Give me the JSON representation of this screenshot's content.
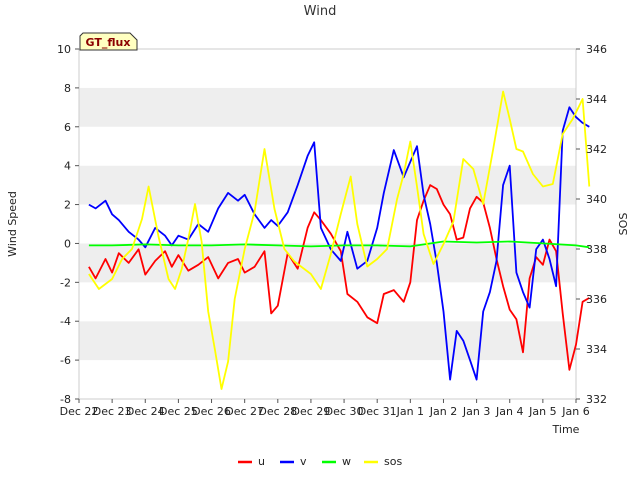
{
  "chart_data": {
    "type": "line",
    "title": "Wind",
    "site_label": "GT_flux",
    "xlabel": "Time",
    "ylabel": "Wind Speed",
    "ylabel_right": "SOS",
    "x_ticks": [
      "Dec 22",
      "Dec 23",
      "Dec 24",
      "Dec 25",
      "Dec 26",
      "Dec 27",
      "Dec 28",
      "Dec 29",
      "Dec 30",
      "Dec 31",
      "Jan 1",
      "Jan 2",
      "Jan 3",
      "Jan 4",
      "Jan 5",
      "Jan 6"
    ],
    "x_range_days": [
      0,
      15
    ],
    "y_left": {
      "range": [
        -8,
        10
      ],
      "ticks": [
        "-8",
        "-6",
        "-4",
        "-2",
        "0",
        "2",
        "4",
        "6",
        "8",
        "10"
      ]
    },
    "y_right": {
      "range": [
        332,
        346
      ],
      "ticks": [
        "332",
        "334",
        "336",
        "338",
        "340",
        "342",
        "344",
        "346"
      ]
    },
    "grid": "horizontal bands",
    "legend_position": "bottom-center",
    "series": [
      {
        "name": "u",
        "axis": "left",
        "color": "#ff0000",
        "x": [
          0.3,
          0.5,
          0.8,
          1.0,
          1.2,
          1.5,
          1.8,
          2.0,
          2.3,
          2.6,
          2.8,
          3.0,
          3.3,
          3.6,
          3.9,
          4.2,
          4.5,
          4.8,
          5.0,
          5.3,
          5.6,
          5.8,
          6.0,
          6.3,
          6.6,
          6.9,
          7.1,
          7.3,
          7.6,
          7.9,
          8.1,
          8.4,
          8.7,
          9.0,
          9.2,
          9.5,
          9.8,
          10.0,
          10.2,
          10.4,
          10.6,
          10.8,
          11.0,
          11.2,
          11.4,
          11.6,
          11.8,
          12.0,
          12.2,
          12.4,
          12.6,
          12.8,
          13.0,
          13.2,
          13.4,
          13.6,
          13.8,
          14.0,
          14.2,
          14.4,
          14.6,
          14.8,
          15.0,
          15.2,
          15.4
        ],
        "values": [
          -1.2,
          -1.8,
          -0.8,
          -1.5,
          -0.5,
          -1.0,
          -0.3,
          -1.6,
          -0.9,
          -0.4,
          -1.2,
          -0.6,
          -1.4,
          -1.1,
          -0.7,
          -1.8,
          -1.0,
          -0.8,
          -1.5,
          -1.2,
          -0.4,
          -3.6,
          -3.2,
          -0.5,
          -1.3,
          0.8,
          1.6,
          1.2,
          0.5,
          -0.4,
          -2.6,
          -3.0,
          -3.8,
          -4.1,
          -2.6,
          -2.4,
          -3.0,
          -2.0,
          1.2,
          2.2,
          3.0,
          2.8,
          2.0,
          1.5,
          0.2,
          0.3,
          1.8,
          2.4,
          2.1,
          0.8,
          -0.8,
          -2.2,
          -3.4,
          -3.9,
          -5.6,
          -1.8,
          -0.7,
          -1.1,
          0.2,
          -0.4,
          -3.6,
          -6.5,
          -5.2,
          -3.0,
          -2.8
        ]
      },
      {
        "name": "v",
        "axis": "left",
        "color": "#0000ff",
        "x": [
          0.3,
          0.5,
          0.8,
          1.0,
          1.2,
          1.5,
          1.8,
          2.0,
          2.3,
          2.6,
          2.8,
          3.0,
          3.3,
          3.6,
          3.9,
          4.2,
          4.5,
          4.8,
          5.0,
          5.3,
          5.6,
          5.8,
          6.0,
          6.3,
          6.6,
          6.9,
          7.1,
          7.3,
          7.6,
          7.9,
          8.1,
          8.4,
          8.7,
          9.0,
          9.2,
          9.5,
          9.8,
          10.0,
          10.2,
          10.4,
          10.6,
          10.8,
          11.0,
          11.2,
          11.4,
          11.6,
          11.8,
          12.0,
          12.2,
          12.4,
          12.6,
          12.8,
          13.0,
          13.2,
          13.4,
          13.6,
          13.8,
          14.0,
          14.2,
          14.4,
          14.6,
          14.8,
          15.0,
          15.2,
          15.4
        ],
        "values": [
          2.0,
          1.8,
          2.2,
          1.5,
          1.2,
          0.6,
          0.2,
          -0.2,
          0.8,
          0.4,
          -0.1,
          0.4,
          0.2,
          1.0,
          0.6,
          1.8,
          2.6,
          2.2,
          2.5,
          1.5,
          0.8,
          1.2,
          0.9,
          1.6,
          3.0,
          4.5,
          5.2,
          0.8,
          -0.3,
          -0.9,
          0.6,
          -1.3,
          -0.9,
          0.8,
          2.6,
          4.8,
          3.4,
          4.2,
          5.0,
          2.5,
          1.0,
          -1.0,
          -3.5,
          -7.0,
          -4.5,
          -5.0,
          -6.0,
          -7.0,
          -3.5,
          -2.5,
          -0.9,
          3.0,
          4.0,
          -1.5,
          -2.5,
          -3.3,
          -0.3,
          0.2,
          -0.8,
          -2.2,
          5.8,
          7.0,
          6.5,
          6.2,
          6.0
        ]
      },
      {
        "name": "w",
        "axis": "left",
        "color": "#00ff00",
        "x": [
          0.3,
          1.0,
          2.0,
          3.0,
          4.0,
          5.0,
          6.0,
          7.0,
          8.0,
          9.0,
          10.0,
          11.0,
          12.0,
          13.0,
          14.0,
          15.0,
          15.4
        ],
        "values": [
          -0.1,
          -0.1,
          -0.05,
          -0.1,
          -0.1,
          -0.05,
          -0.1,
          -0.15,
          -0.1,
          -0.1,
          -0.15,
          0.1,
          0.05,
          0.1,
          0.0,
          -0.1,
          -0.2
        ]
      },
      {
        "name": "sos",
        "axis": "right",
        "color": "#ffff00",
        "x": [
          0.3,
          0.6,
          1.0,
          1.3,
          1.6,
          1.9,
          2.1,
          2.4,
          2.7,
          2.9,
          3.1,
          3.3,
          3.5,
          3.7,
          3.9,
          4.1,
          4.3,
          4.5,
          4.7,
          5.0,
          5.3,
          5.6,
          5.9,
          6.2,
          6.5,
          6.8,
          7.0,
          7.3,
          7.6,
          7.9,
          8.2,
          8.4,
          8.7,
          9.0,
          9.3,
          9.6,
          9.8,
          10.0,
          10.2,
          10.4,
          10.7,
          11.0,
          11.3,
          11.6,
          11.9,
          12.2,
          12.5,
          12.8,
          13.0,
          13.2,
          13.4,
          13.7,
          14.0,
          14.3,
          14.6,
          14.9,
          15.2,
          15.4
        ],
        "values": [
          337.0,
          336.4,
          336.8,
          337.6,
          338.0,
          339.2,
          340.5,
          338.5,
          336.8,
          336.4,
          337.2,
          338.4,
          339.8,
          338.3,
          335.5,
          334.0,
          332.4,
          333.5,
          336.0,
          338.0,
          339.5,
          342.0,
          339.6,
          338.0,
          337.5,
          337.2,
          337.0,
          336.4,
          337.8,
          339.4,
          340.9,
          339.0,
          337.3,
          337.6,
          338.0,
          340.0,
          341.0,
          342.3,
          340.5,
          338.6,
          337.4,
          338.2,
          339.1,
          341.6,
          341.2,
          339.8,
          342.0,
          344.3,
          343.2,
          342.0,
          341.9,
          341.0,
          340.5,
          340.6,
          342.6,
          343.2,
          344.0,
          340.5
        ]
      }
    ]
  }
}
